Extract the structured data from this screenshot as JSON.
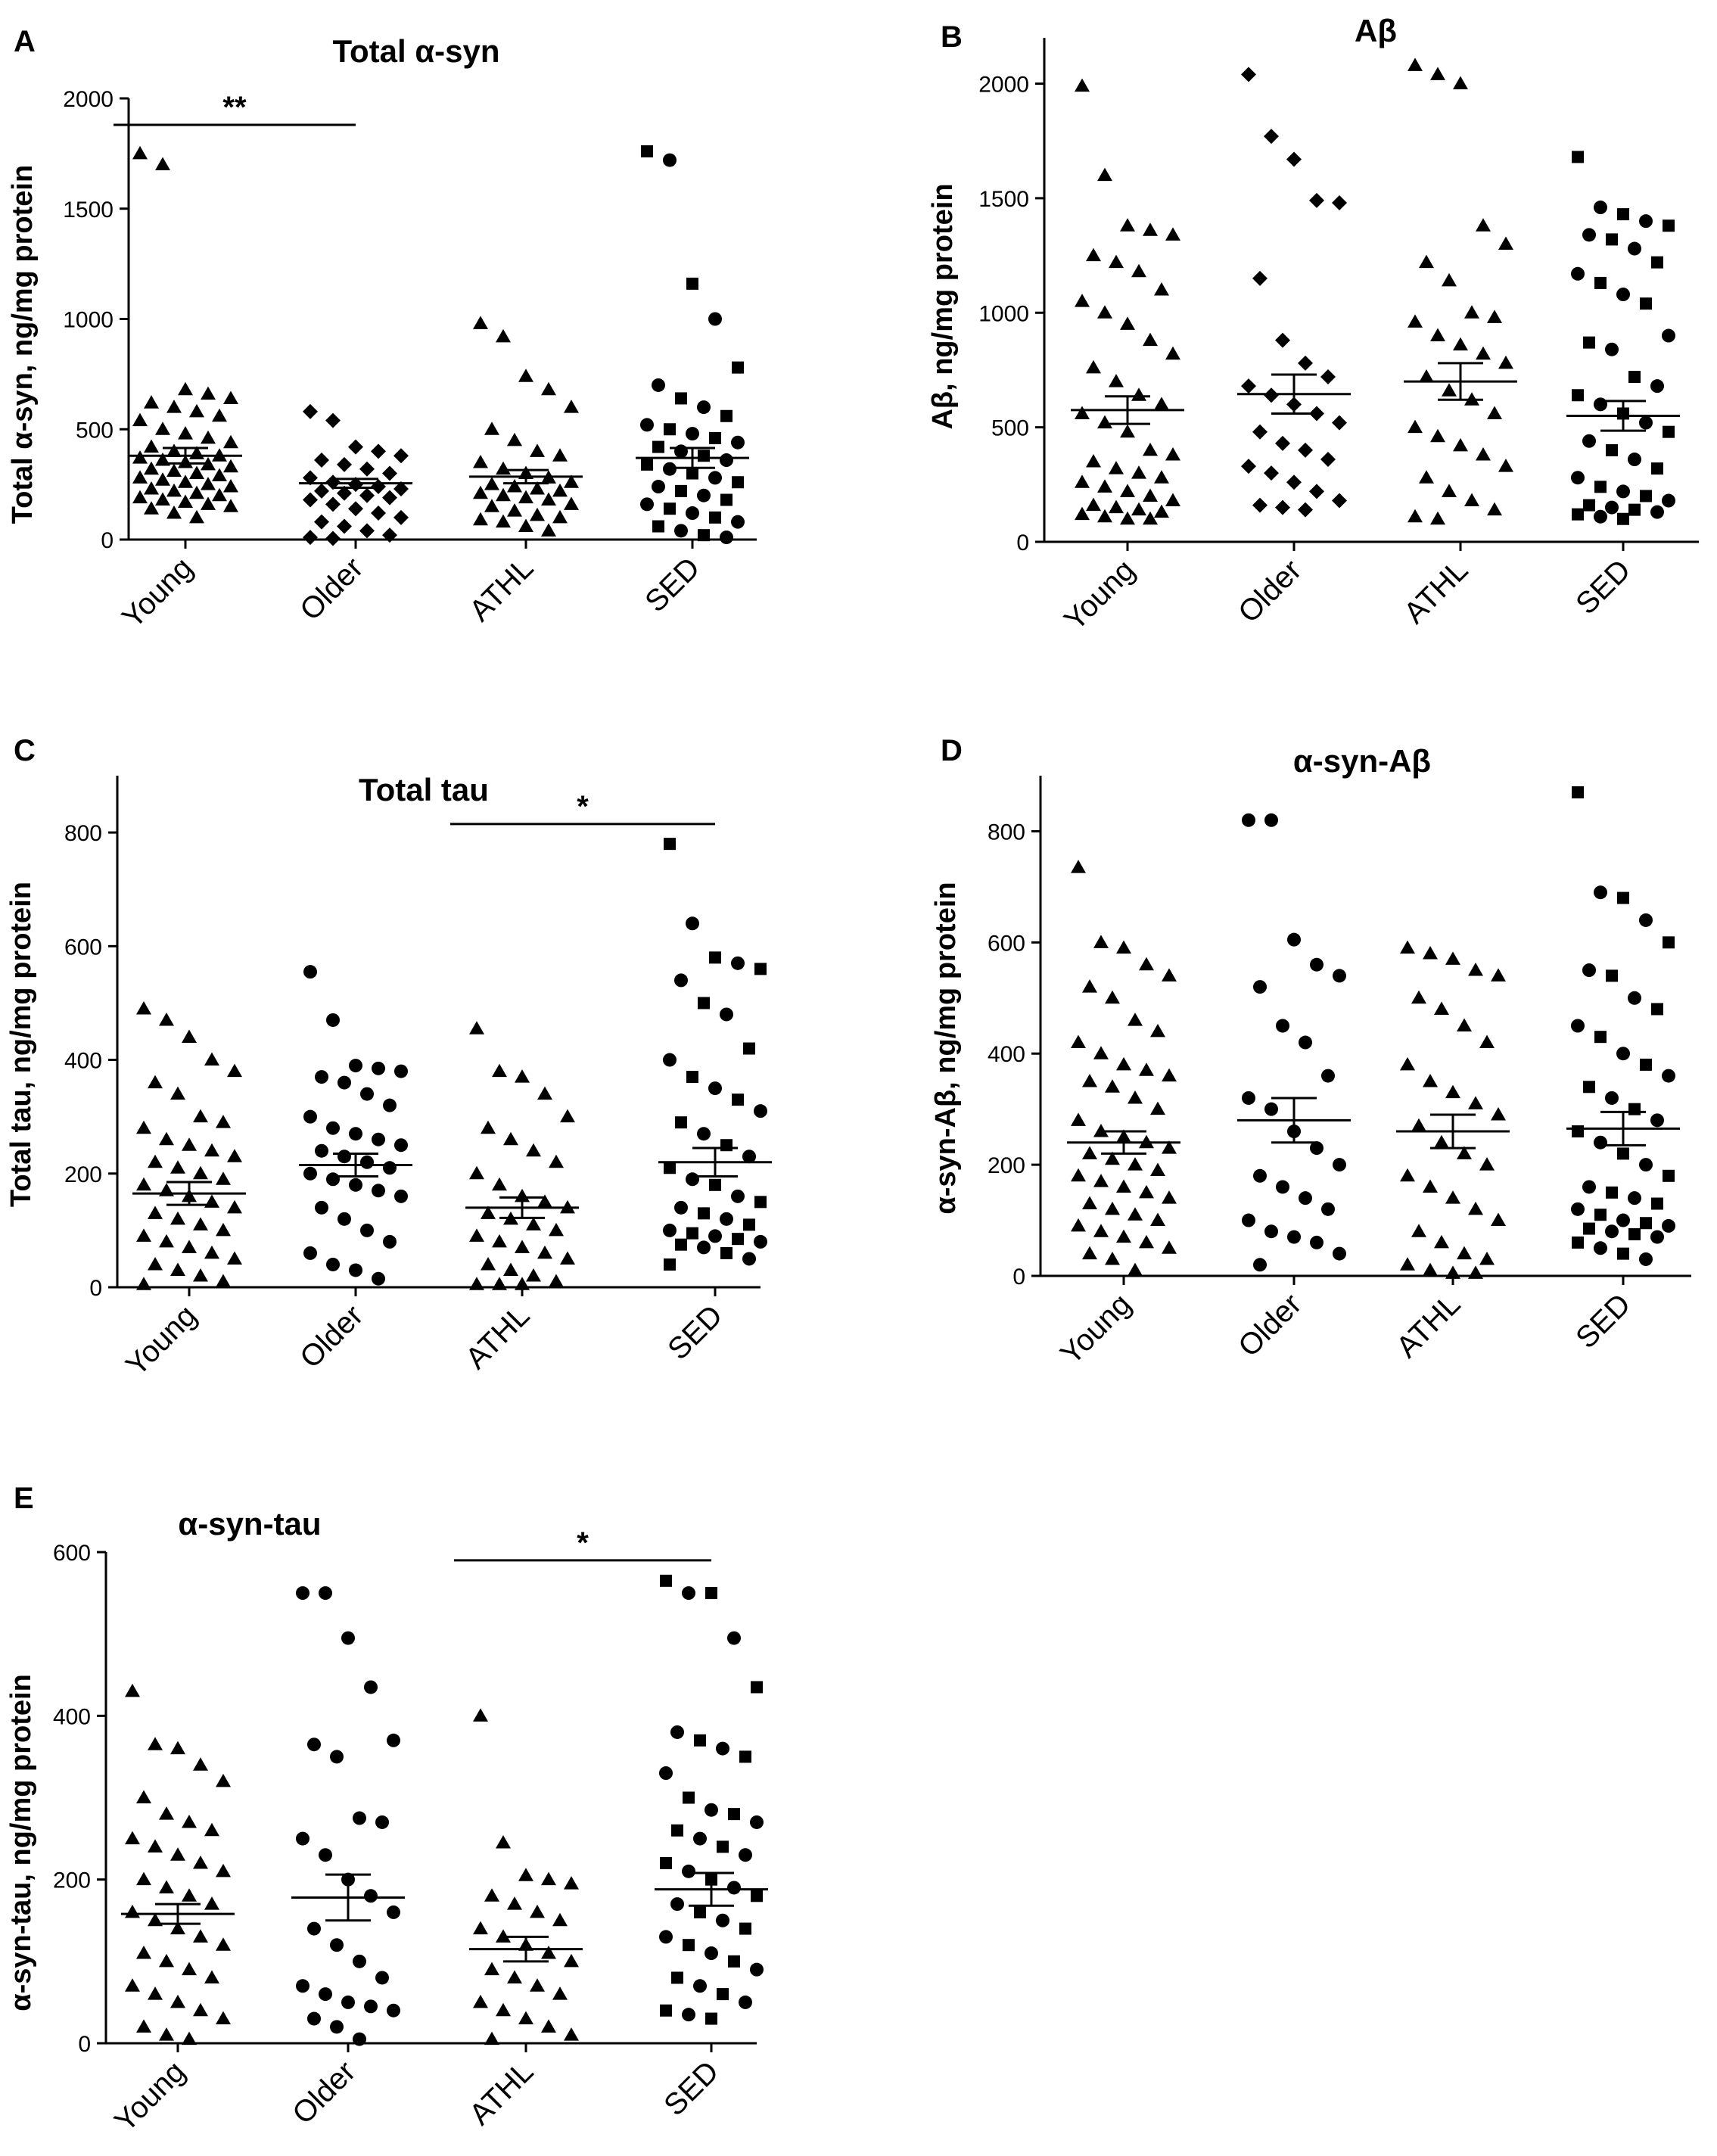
{
  "figure": {
    "panels": [
      {
        "letter": "A",
        "title": "Total α-syn",
        "ylabel": "Total α-syn, ng/mg protein"
      },
      {
        "letter": "B",
        "title": "Aβ",
        "ylabel": "Aβ, ng/mg protein"
      },
      {
        "letter": "C",
        "title": "Total tau",
        "ylabel": "Total tau, ng/mg protein"
      },
      {
        "letter": "D",
        "title": "α-syn-Aβ",
        "ylabel": "α-syn-Aβ, ng/mg protein"
      },
      {
        "letter": "E",
        "title": "α-syn-tau",
        "ylabel": "α-syn-tau, ng/mg protein"
      }
    ]
  },
  "chart_data": [
    {
      "type": "scatter",
      "panel": "A",
      "title": "Total α-syn",
      "ylabel": "Total α-syn, ng/mg protein",
      "categories": [
        "Young",
        "Older",
        "ATHL",
        "SED"
      ],
      "ylim": [
        0,
        2000
      ],
      "yticks": [
        0,
        500,
        1000,
        1500,
        2000
      ],
      "markers": [
        "triangle",
        "diamond",
        "triangle",
        "mixed"
      ],
      "means": [
        380,
        255,
        285,
        370
      ],
      "sems": [
        35,
        20,
        30,
        45
      ],
      "significance": [
        {
          "from": 0,
          "to": 1,
          "label": "**",
          "y": 1880
        }
      ],
      "points": [
        [
          1750,
          1700,
          680,
          660,
          640,
          620,
          600,
          580,
          560,
          540,
          500,
          480,
          460,
          440,
          420,
          400,
          390,
          380,
          370,
          360,
          350,
          340,
          330,
          320,
          310,
          300,
          290,
          280,
          270,
          260,
          250,
          240,
          230,
          220,
          210,
          200,
          190,
          180,
          170,
          160,
          150,
          140,
          120,
          100
        ],
        [
          580,
          540,
          420,
          400,
          380,
          360,
          340,
          320,
          300,
          280,
          260,
          250,
          240,
          230,
          220,
          210,
          200,
          190,
          180,
          160,
          140,
          120,
          100,
          80,
          60,
          40,
          20,
          10,
          5
        ],
        [
          980,
          920,
          740,
          680,
          600,
          500,
          450,
          400,
          380,
          350,
          320,
          300,
          280,
          260,
          250,
          240,
          230,
          220,
          210,
          200,
          190,
          180,
          160,
          150,
          130,
          110,
          100,
          90,
          80,
          60,
          40
        ],
        [
          1760,
          1720,
          1160,
          1000,
          780,
          700,
          640,
          600,
          560,
          520,
          500,
          480,
          460,
          440,
          420,
          400,
          380,
          360,
          340,
          320,
          300,
          280,
          260,
          240,
          220,
          200,
          180,
          160,
          140,
          120,
          100,
          80,
          60,
          40,
          20,
          10
        ]
      ]
    },
    {
      "type": "scatter",
      "panel": "B",
      "title": "Aβ",
      "ylabel": "Aβ, ng/mg protein",
      "categories": [
        "Young",
        "Older",
        "ATHL",
        "SED"
      ],
      "ylim": [
        0,
        2200
      ],
      "yticks": [
        0,
        500,
        1000,
        1500,
        2000
      ],
      "markers": [
        "triangle",
        "diamond",
        "triangle",
        "mixed"
      ],
      "means": [
        575,
        645,
        700,
        550
      ],
      "sems": [
        60,
        85,
        80,
        65
      ],
      "significance": [],
      "points": [
        [
          1990,
          1600,
          1380,
          1360,
          1340,
          1250,
          1220,
          1180,
          1100,
          1050,
          1000,
          950,
          880,
          820,
          760,
          700,
          640,
          600,
          560,
          520,
          480,
          400,
          380,
          350,
          320,
          300,
          280,
          260,
          240,
          220,
          200,
          180,
          160,
          150,
          140,
          130,
          120,
          110,
          100,
          100
        ],
        [
          2040,
          1770,
          1670,
          1490,
          1480,
          1150,
          880,
          780,
          720,
          680,
          640,
          600,
          560,
          520,
          480,
          430,
          400,
          360,
          330,
          300,
          260,
          220,
          180,
          160,
          150,
          140
        ],
        [
          2080,
          2040,
          2000,
          1380,
          1300,
          1220,
          1140,
          1000,
          980,
          960,
          900,
          860,
          820,
          780,
          720,
          660,
          620,
          560,
          500,
          460,
          420,
          380,
          330,
          280,
          220,
          180,
          140,
          110,
          100
        ],
        [
          1680,
          1460,
          1430,
          1400,
          1380,
          1340,
          1320,
          1280,
          1220,
          1170,
          1130,
          1080,
          1040,
          900,
          870,
          840,
          720,
          680,
          640,
          600,
          560,
          520,
          480,
          440,
          400,
          360,
          320,
          280,
          240,
          220,
          200,
          180,
          160,
          150,
          140,
          130,
          120,
          110,
          100
        ]
      ]
    },
    {
      "type": "scatter",
      "panel": "C",
      "title": "Total tau",
      "ylabel": "Total tau, ng/mg protein",
      "categories": [
        "Young",
        "Older",
        "ATHL",
        "SED"
      ],
      "ylim": [
        0,
        900
      ],
      "yticks": [
        0,
        200,
        400,
        600,
        800
      ],
      "markers": [
        "triangle",
        "circle",
        "triangle",
        "mixed"
      ],
      "means": [
        165,
        215,
        140,
        220
      ],
      "sems": [
        20,
        20,
        18,
        25
      ],
      "significance": [
        {
          "from": 2,
          "to": 3,
          "label": "*",
          "y": 815
        }
      ],
      "points": [
        [
          490,
          470,
          440,
          400,
          380,
          360,
          340,
          300,
          290,
          280,
          260,
          250,
          240,
          230,
          220,
          210,
          200,
          190,
          180,
          170,
          160,
          150,
          140,
          130,
          120,
          110,
          100,
          90,
          80,
          70,
          60,
          50,
          40,
          30,
          20,
          10,
          5
        ],
        [
          555,
          470,
          390,
          385,
          380,
          370,
          360,
          340,
          320,
          300,
          280,
          270,
          260,
          250,
          240,
          230,
          220,
          210,
          200,
          190,
          180,
          170,
          160,
          140,
          120,
          100,
          80,
          60,
          40,
          30,
          15
        ],
        [
          455,
          380,
          370,
          340,
          300,
          280,
          260,
          240,
          220,
          200,
          180,
          160,
          150,
          140,
          130,
          120,
          110,
          100,
          90,
          80,
          70,
          60,
          50,
          40,
          30,
          20,
          10,
          5,
          5,
          5
        ],
        [
          780,
          640,
          580,
          570,
          560,
          540,
          500,
          480,
          420,
          400,
          370,
          350,
          330,
          310,
          290,
          270,
          250,
          230,
          210,
          190,
          180,
          160,
          150,
          140,
          130,
          120,
          110,
          100,
          95,
          90,
          85,
          80,
          75,
          70,
          60,
          50,
          40
        ]
      ]
    },
    {
      "type": "scatter",
      "panel": "D",
      "title": "α-syn-Aβ",
      "ylabel": "α-syn-Aβ, ng/mg protein",
      "categories": [
        "Young",
        "Older",
        "ATHL",
        "SED"
      ],
      "ylim": [
        0,
        900
      ],
      "yticks": [
        0,
        200,
        400,
        600,
        800
      ],
      "markers": [
        "triangle",
        "circle",
        "triangle",
        "mixed"
      ],
      "means": [
        240,
        280,
        260,
        265
      ],
      "sems": [
        20,
        40,
        30,
        30
      ],
      "significance": [],
      "points": [
        [
          735,
          600,
          590,
          560,
          540,
          520,
          500,
          460,
          440,
          420,
          400,
          380,
          370,
          360,
          350,
          340,
          320,
          300,
          280,
          260,
          250,
          240,
          230,
          220,
          210,
          200,
          190,
          180,
          170,
          160,
          150,
          140,
          130,
          120,
          110,
          100,
          90,
          80,
          70,
          60,
          50,
          40,
          30,
          10
        ],
        [
          820,
          820,
          605,
          560,
          540,
          520,
          450,
          420,
          360,
          320,
          300,
          260,
          230,
          200,
          180,
          160,
          140,
          120,
          100,
          80,
          70,
          60,
          40,
          20
        ],
        [
          590,
          580,
          570,
          550,
          540,
          500,
          480,
          450,
          420,
          380,
          350,
          330,
          310,
          290,
          270,
          240,
          220,
          200,
          180,
          160,
          140,
          120,
          100,
          80,
          60,
          40,
          30,
          20,
          10,
          5,
          5
        ],
        [
          870,
          690,
          680,
          640,
          600,
          550,
          540,
          500,
          480,
          450,
          430,
          400,
          380,
          360,
          340,
          320,
          300,
          280,
          260,
          240,
          220,
          200,
          180,
          160,
          150,
          140,
          130,
          120,
          110,
          100,
          95,
          90,
          85,
          80,
          75,
          70,
          60,
          50,
          40,
          30
        ]
      ]
    },
    {
      "type": "scatter",
      "panel": "E",
      "title": "α-syn-tau",
      "ylabel": "α-syn-tau, ng/mg protein",
      "categories": [
        "Young",
        "Older",
        "ATHL",
        "SED"
      ],
      "ylim": [
        0,
        600
      ],
      "yticks": [
        0,
        200,
        400,
        600
      ],
      "markers": [
        "triangle",
        "circle",
        "triangle",
        "mixed"
      ],
      "means": [
        158,
        178,
        115,
        188
      ],
      "sems": [
        12,
        28,
        15,
        20
      ],
      "significance": [
        {
          "from": 2,
          "to": 3,
          "label": "*",
          "y": 590
        }
      ],
      "points": [
        [
          430,
          365,
          360,
          340,
          320,
          300,
          280,
          270,
          260,
          250,
          240,
          230,
          220,
          210,
          200,
          190,
          180,
          170,
          160,
          150,
          140,
          130,
          120,
          110,
          100,
          90,
          80,
          70,
          60,
          50,
          40,
          30,
          20,
          10,
          5
        ],
        [
          550,
          550,
          495,
          435,
          370,
          365,
          350,
          275,
          270,
          250,
          230,
          200,
          180,
          160,
          140,
          120,
          100,
          80,
          70,
          60,
          50,
          45,
          40,
          30,
          20,
          5
        ],
        [
          400,
          245,
          205,
          200,
          195,
          180,
          170,
          160,
          150,
          140,
          130,
          120,
          110,
          100,
          90,
          80,
          70,
          60,
          50,
          40,
          30,
          20,
          10,
          5
        ],
        [
          565,
          550,
          550,
          495,
          435,
          380,
          370,
          360,
          350,
          330,
          300,
          285,
          280,
          270,
          260,
          250,
          240,
          230,
          220,
          210,
          200,
          190,
          180,
          170,
          160,
          150,
          140,
          130,
          120,
          110,
          100,
          90,
          80,
          70,
          60,
          50,
          40,
          35,
          30
        ]
      ]
    }
  ]
}
